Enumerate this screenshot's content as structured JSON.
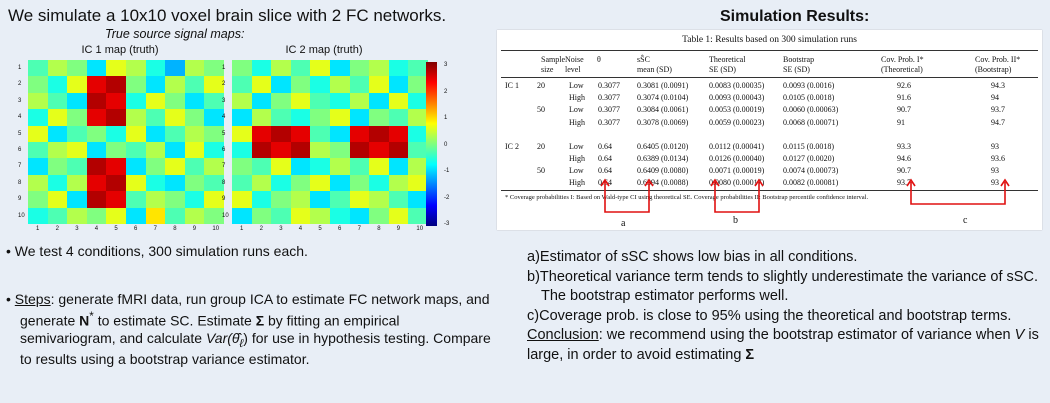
{
  "headline": "We simulate a 10x10 voxel brain slice with 2 FC networks.",
  "maps_subtitle": "True source signal maps:",
  "results_title": "Simulation Results:",
  "maps": [
    {
      "label": "IC 1 map (truth)",
      "grid": [
        [
          0.45,
          0.55,
          0.5,
          0.35,
          0.6,
          0.55,
          0.4,
          0.3,
          0.55,
          0.5
        ],
        [
          0.5,
          0.4,
          0.6,
          0.9,
          0.95,
          0.5,
          0.35,
          0.55,
          0.45,
          0.6
        ],
        [
          0.55,
          0.45,
          0.35,
          0.95,
          0.9,
          0.4,
          0.6,
          0.5,
          0.35,
          0.45
        ],
        [
          0.4,
          0.6,
          0.5,
          0.9,
          0.95,
          0.55,
          0.45,
          0.6,
          0.5,
          0.35
        ],
        [
          0.6,
          0.35,
          0.45,
          0.5,
          0.4,
          0.6,
          0.35,
          0.45,
          0.55,
          0.5
        ],
        [
          0.45,
          0.55,
          0.6,
          0.35,
          0.5,
          0.45,
          0.55,
          0.35,
          0.6,
          0.4
        ],
        [
          0.35,
          0.5,
          0.45,
          0.95,
          0.9,
          0.35,
          0.5,
          0.6,
          0.45,
          0.55
        ],
        [
          0.55,
          0.4,
          0.55,
          0.9,
          0.95,
          0.6,
          0.4,
          0.35,
          0.5,
          0.45
        ],
        [
          0.5,
          0.6,
          0.35,
          0.95,
          0.9,
          0.45,
          0.55,
          0.5,
          0.4,
          0.6
        ],
        [
          0.4,
          0.45,
          0.55,
          0.5,
          0.6,
          0.35,
          0.65,
          0.45,
          0.55,
          0.5
        ]
      ]
    },
    {
      "label": "IC 2 map (truth)",
      "grid": [
        [
          0.5,
          0.4,
          0.55,
          0.45,
          0.6,
          0.35,
          0.5,
          0.55,
          0.4,
          0.45
        ],
        [
          0.45,
          0.6,
          0.35,
          0.5,
          0.4,
          0.55,
          0.45,
          0.6,
          0.35,
          0.5
        ],
        [
          0.55,
          0.35,
          0.5,
          0.6,
          0.45,
          0.4,
          0.55,
          0.35,
          0.6,
          0.4
        ],
        [
          0.35,
          0.55,
          0.45,
          0.4,
          0.5,
          0.6,
          0.35,
          0.5,
          0.45,
          0.55
        ],
        [
          0.6,
          0.9,
          0.95,
          0.9,
          0.45,
          0.35,
          0.9,
          0.95,
          0.9,
          0.4
        ],
        [
          0.4,
          0.95,
          0.9,
          0.95,
          0.55,
          0.5,
          0.95,
          0.9,
          0.95,
          0.45
        ],
        [
          0.5,
          0.45,
          0.6,
          0.35,
          0.4,
          0.55,
          0.45,
          0.6,
          0.35,
          0.55
        ],
        [
          0.45,
          0.55,
          0.4,
          0.5,
          0.6,
          0.35,
          0.5,
          0.4,
          0.55,
          0.6
        ],
        [
          0.6,
          0.4,
          0.5,
          0.55,
          0.35,
          0.45,
          0.6,
          0.55,
          0.45,
          0.35
        ],
        [
          0.35,
          0.5,
          0.45,
          0.6,
          0.55,
          0.4,
          0.35,
          0.5,
          0.6,
          0.45
        ]
      ]
    }
  ],
  "axis_ticks": [
    "1",
    "2",
    "3",
    "4",
    "5",
    "6",
    "7",
    "8",
    "9",
    "10"
  ],
  "colorbar_ticks": [
    "3",
    "2",
    "1",
    "0",
    "-1",
    "-2",
    "-3"
  ],
  "table": {
    "caption": "Table 1: Results based on 300 simulation runs",
    "headers": [
      [
        "Sample",
        "size"
      ],
      [
        "Noise",
        "level"
      ],
      [
        "θ",
        ""
      ],
      [
        "sŜC",
        "mean (SD)"
      ],
      [
        "Theoretical",
        "SE (SD)"
      ],
      [
        "Bootstrap",
        "SE (SD)"
      ],
      [
        "Cov. Prob. I*",
        "(Theoretical)"
      ],
      [
        "Cov. Prob. II*",
        "(Bootstrap)"
      ]
    ],
    "rows": [
      [
        "IC 1",
        "20",
        "Low",
        "0.3077",
        "0.3081 (0.0091)",
        "0.0083 (0.00035)",
        "0.0093 (0.0016)",
        "92.6",
        "94.3"
      ],
      [
        "",
        "",
        "High",
        "0.3077",
        "0.3074 (0.0104)",
        "0.0093 (0.00043)",
        "0.0105 (0.0018)",
        "91.6",
        "94"
      ],
      [
        "",
        "50",
        "Low",
        "0.3077",
        "0.3084 (0.0061)",
        "0.0053 (0.00019)",
        "0.0060 (0.00063)",
        "90.7",
        "93.7"
      ],
      [
        "",
        "",
        "High",
        "0.3077",
        "0.3078 (0.0069)",
        "0.0059 (0.00023)",
        "0.0068 (0.00071)",
        "91",
        "94.7"
      ],
      [
        "IC 2",
        "20",
        "Low",
        "0.64",
        "0.6405 (0.0120)",
        "0.0112 (0.00041)",
        "0.0115 (0.0018)",
        "93.3",
        "93"
      ],
      [
        "",
        "",
        "High",
        "0.64",
        "0.6389 (0.0134)",
        "0.0126 (0.00040)",
        "0.0127 (0.0020)",
        "94.6",
        "93.6"
      ],
      [
        "",
        "50",
        "Low",
        "0.64",
        "0.6409 (0.0080)",
        "0.0071 (0.00019)",
        "0.0074 (0.00073)",
        "90.7",
        "93"
      ],
      [
        "",
        "",
        "High",
        "0.64",
        "0.6394 (0.0088)",
        "0.0080 (0.00017)",
        "0.0082 (0.00081)",
        "93.7",
        "93"
      ]
    ],
    "footnote": "* Coverage probabilities I: Based on Wald-type CI using theoretical SE.     Coverage probabilities II: Bootstrap percentile confidence interval."
  },
  "annotation_letters": [
    "a",
    "b",
    "c"
  ],
  "arrow_color": "#e01010",
  "bullet1": "We test 4 conditions, 300 simulation runs each.",
  "steps": {
    "label": "Steps",
    "text_1": ": generate fMRI data, run group ICA to estimate FC network maps, and generate ",
    "n_star": "N",
    "text_2": " to estimate SC. Estimate ",
    "sigma": "Σ",
    "text_3": " by fitting an empirical semivariogram, and calculate ",
    "var_expr": "Var(θ̂",
    "var_sub": "ℓ",
    "text_4": ") for use in hypothesis testing. Compare to results using a bootstrap variance estimator."
  },
  "findings": [
    {
      "marker": "a)",
      "text": "Estimator of sSC shows low bias in all conditions."
    },
    {
      "marker": "b)",
      "text": "Theoretical variance term tends to slightly underestimate the variance of sSC. The bootstrap estimator performs well."
    },
    {
      "marker": "c)",
      "text": "Coverage prob. is close to 95% using the theoretical and bootstrap terms."
    }
  ],
  "conclusion": {
    "label": "Conclusion",
    "text_1": ": we recommend using the bootstrap estimator of variance when ",
    "v": "V",
    "text_2": " is large, in order to avoid estimating ",
    "sigma": "Σ"
  }
}
